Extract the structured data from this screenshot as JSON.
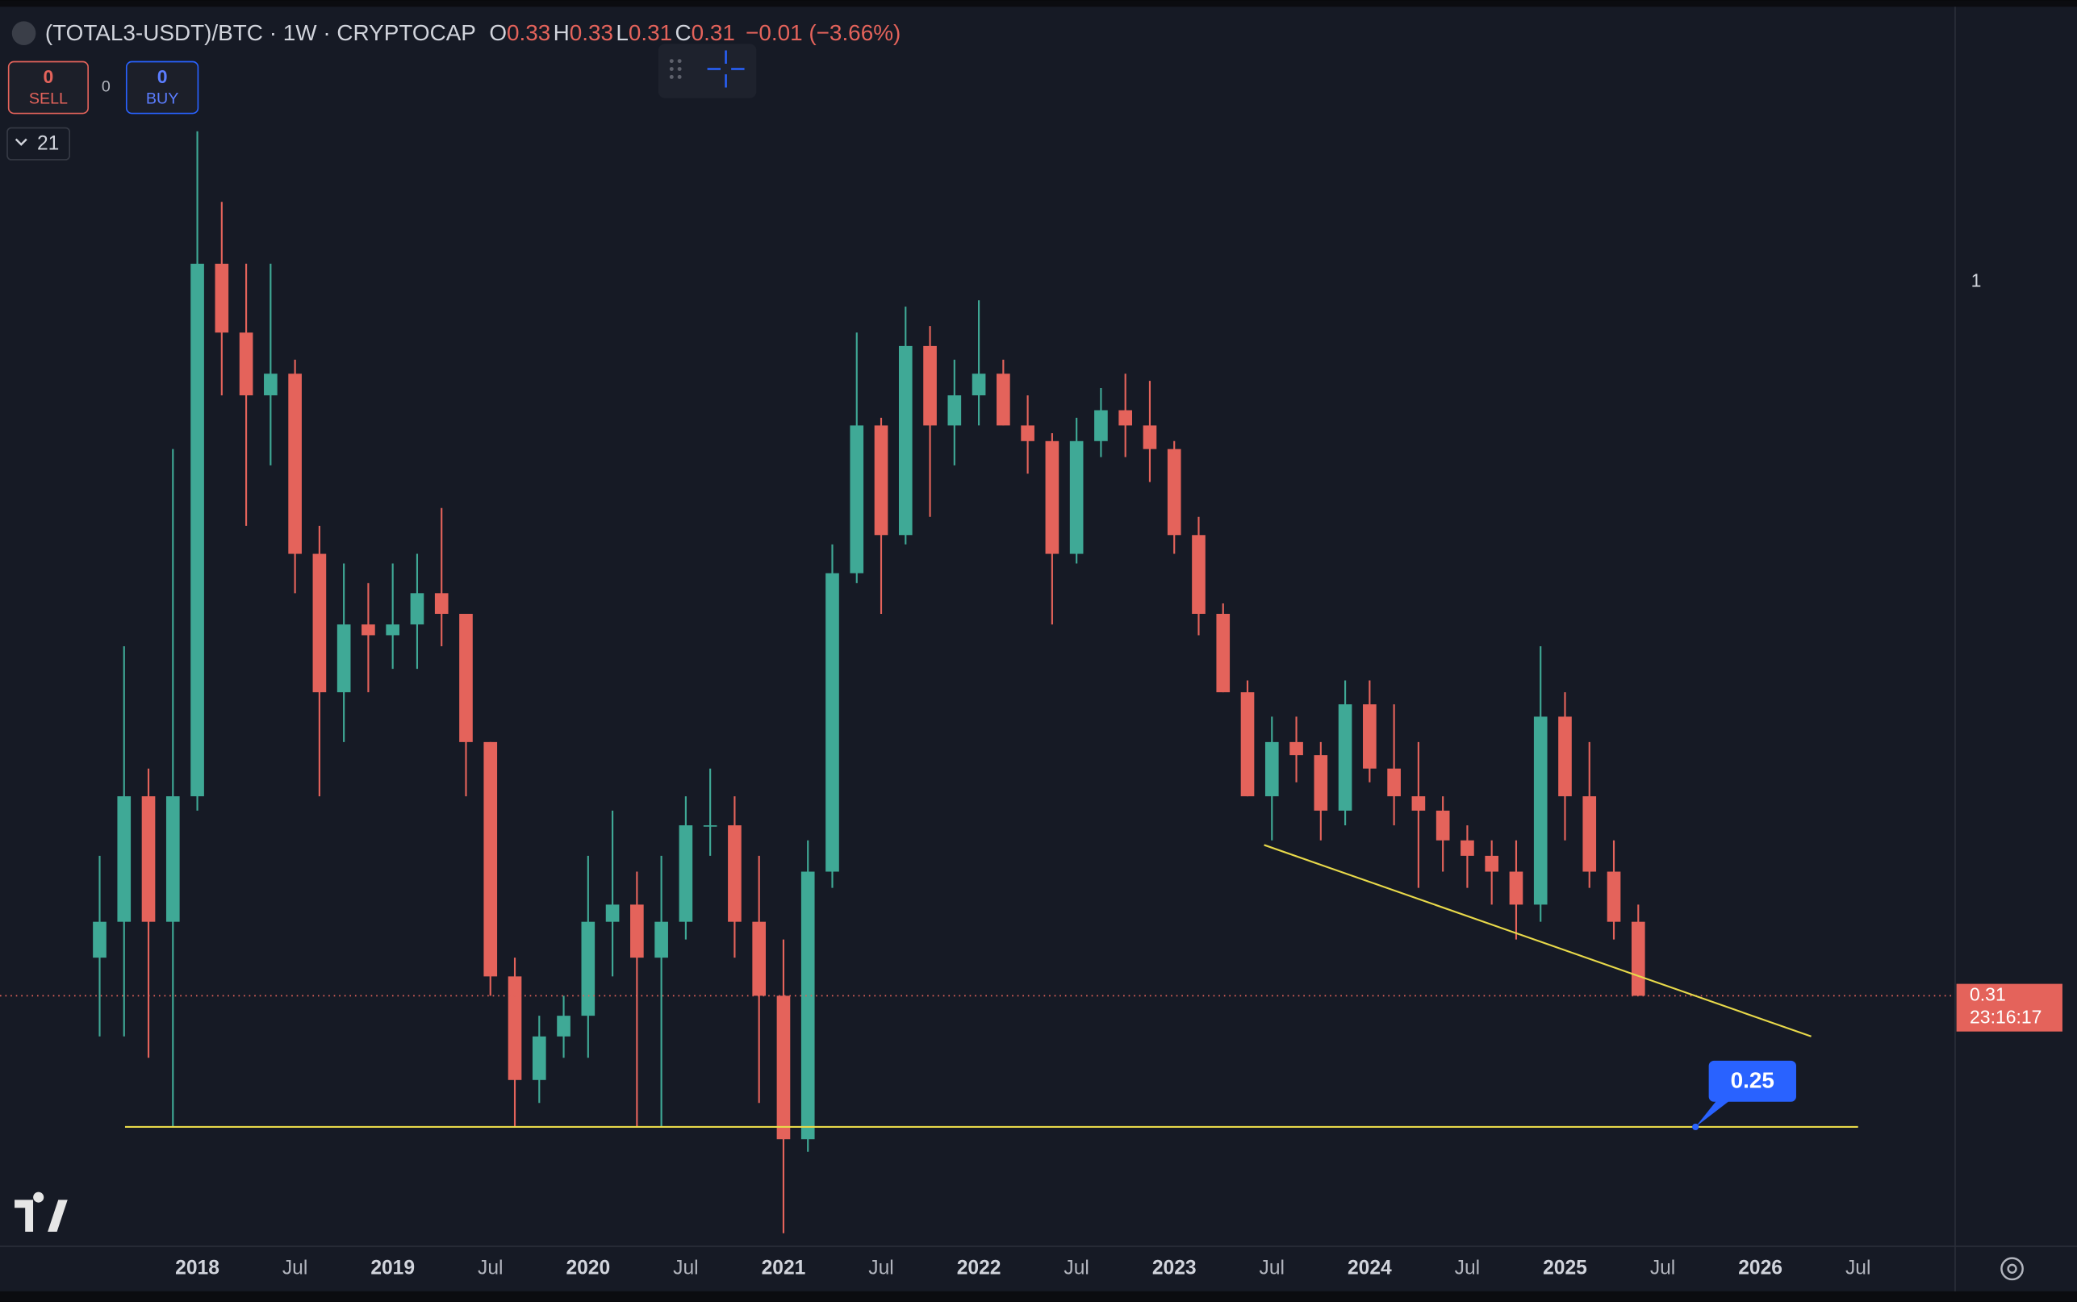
{
  "chart_data": {
    "type": "candlestick",
    "symbol": "(TOTAL3-USDT)/BTC · 1W · CRYPTOCAP",
    "legend_values": [
      {
        "label": "O",
        "value": 0.33
      },
      {
        "label": "H",
        "value": 0.33
      },
      {
        "label": "L",
        "value": 0.31
      },
      {
        "label": "C",
        "value": 0.31
      }
    ],
    "change": "−0.01 (−3.66%)",
    "log_scale": true,
    "up_color": "#3fa996",
    "down_color": "#e4635b",
    "xlim": [
      2016.99,
      2026.99
    ],
    "ylim": [
      0.206,
      1.57
    ],
    "xticks": [
      2018,
      {
        "value": 2018.5,
        "label": "Jul"
      },
      2019,
      {
        "value": 2019.5,
        "label": "Jul"
      },
      2020,
      {
        "value": 2020.5,
        "label": "Jul"
      },
      2021,
      {
        "value": 2021.5,
        "label": "Jul"
      },
      2022,
      {
        "value": 2022.5,
        "label": "Jul"
      },
      2023,
      {
        "value": 2023.5,
        "label": "Jul"
      },
      2024,
      {
        "value": 2024.5,
        "label": "Jul"
      },
      2025,
      {
        "value": 2025.5,
        "label": "Jul"
      },
      2026,
      {
        "value": 2026.5,
        "label": "Jul"
      }
    ],
    "yticks": [
      1
    ],
    "x": [
      2017.5,
      2017.625,
      2017.75,
      2017.875,
      2018.0,
      2018.125,
      2018.25,
      2018.375,
      2018.5,
      2018.625,
      2018.75,
      2018.875,
      2019.0,
      2019.125,
      2019.25,
      2019.375,
      2019.5,
      2019.625,
      2019.75,
      2019.875,
      2020.0,
      2020.125,
      2020.25,
      2020.375,
      2020.5,
      2020.625,
      2020.75,
      2020.875,
      2021.0,
      2021.125,
      2021.25,
      2021.375,
      2021.5,
      2021.625,
      2021.75,
      2021.875,
      2022.0,
      2022.125,
      2022.25,
      2022.375,
      2022.5,
      2022.625,
      2022.75,
      2022.875,
      2023.0,
      2023.125,
      2023.25,
      2023.375,
      2023.5,
      2023.625,
      2023.75,
      2023.875,
      2024.0,
      2024.125,
      2024.25,
      2024.375,
      2024.5,
      2024.625,
      2024.75,
      2024.875,
      2025.0,
      2025.125,
      2025.25,
      2025.375
    ],
    "open": [
      0.33,
      0.35,
      0.43,
      0.35,
      0.43,
      1.03,
      0.92,
      0.83,
      0.86,
      0.64,
      0.51,
      0.57,
      0.56,
      0.57,
      0.6,
      0.58,
      0.47,
      0.32,
      0.27,
      0.29,
      0.3,
      0.35,
      0.36,
      0.33,
      0.35,
      0.41,
      0.41,
      0.35,
      0.31,
      0.245,
      0.38,
      0.62,
      0.79,
      0.66,
      0.9,
      0.79,
      0.83,
      0.86,
      0.79,
      0.77,
      0.64,
      0.77,
      0.81,
      0.79,
      0.76,
      0.66,
      0.58,
      0.51,
      0.43,
      0.47,
      0.46,
      0.42,
      0.5,
      0.45,
      0.43,
      0.42,
      0.4,
      0.39,
      0.38,
      0.36,
      0.49,
      0.43,
      0.38,
      0.35
    ],
    "high": [
      0.39,
      0.55,
      0.45,
      0.76,
      1.28,
      1.14,
      1.03,
      1.03,
      0.88,
      0.67,
      0.63,
      0.61,
      0.63,
      0.64,
      0.69,
      0.58,
      0.47,
      0.33,
      0.3,
      0.31,
      0.39,
      0.42,
      0.38,
      0.39,
      0.43,
      0.45,
      0.43,
      0.39,
      0.34,
      0.4,
      0.65,
      0.92,
      0.8,
      0.96,
      0.93,
      0.88,
      0.97,
      0.88,
      0.83,
      0.78,
      0.8,
      0.84,
      0.86,
      0.85,
      0.77,
      0.68,
      0.59,
      0.52,
      0.49,
      0.49,
      0.47,
      0.52,
      0.52,
      0.5,
      0.47,
      0.43,
      0.41,
      0.4,
      0.4,
      0.55,
      0.51,
      0.47,
      0.4,
      0.36
    ],
    "low": [
      0.29,
      0.29,
      0.28,
      0.25,
      0.42,
      0.83,
      0.67,
      0.74,
      0.6,
      0.43,
      0.47,
      0.51,
      0.53,
      0.53,
      0.55,
      0.43,
      0.31,
      0.25,
      0.26,
      0.28,
      0.28,
      0.32,
      0.25,
      0.25,
      0.34,
      0.39,
      0.33,
      0.26,
      0.21,
      0.24,
      0.37,
      0.61,
      0.58,
      0.65,
      0.68,
      0.74,
      0.79,
      0.79,
      0.73,
      0.57,
      0.63,
      0.75,
      0.75,
      0.72,
      0.64,
      0.56,
      0.51,
      0.43,
      0.4,
      0.44,
      0.4,
      0.41,
      0.44,
      0.41,
      0.37,
      0.38,
      0.37,
      0.36,
      0.34,
      0.35,
      0.4,
      0.37,
      0.34,
      0.31
    ],
    "close": [
      0.35,
      0.43,
      0.35,
      0.43,
      1.03,
      0.92,
      0.83,
      0.86,
      0.64,
      0.51,
      0.57,
      0.56,
      0.57,
      0.6,
      0.58,
      0.47,
      0.32,
      0.27,
      0.29,
      0.3,
      0.35,
      0.36,
      0.33,
      0.35,
      0.41,
      0.41,
      0.35,
      0.31,
      0.245,
      0.38,
      0.62,
      0.79,
      0.66,
      0.9,
      0.79,
      0.83,
      0.86,
      0.79,
      0.77,
      0.64,
      0.77,
      0.81,
      0.79,
      0.76,
      0.66,
      0.58,
      0.51,
      0.43,
      0.47,
      0.46,
      0.42,
      0.5,
      0.45,
      0.43,
      0.42,
      0.4,
      0.39,
      0.38,
      0.36,
      0.49,
      0.43,
      0.38,
      0.35,
      0.31
    ],
    "last_price": 0.31,
    "countdown": "23:16:17",
    "horizontal_line": {
      "value": 0.25,
      "x": [
        2017.63,
        2026.5
      ],
      "color": "#e8d94a"
    },
    "trend_line": {
      "x": [
        2023.46,
        2026.26
      ],
      "values": [
        0.397,
        0.29
      ],
      "color": "#e8d94a"
    }
  },
  "trade_panel": {
    "sell_count": "0",
    "sell_label": "SELL",
    "spread": "0",
    "buy_count": "0",
    "buy_label": "BUY"
  },
  "indicator_toggle": "21"
}
